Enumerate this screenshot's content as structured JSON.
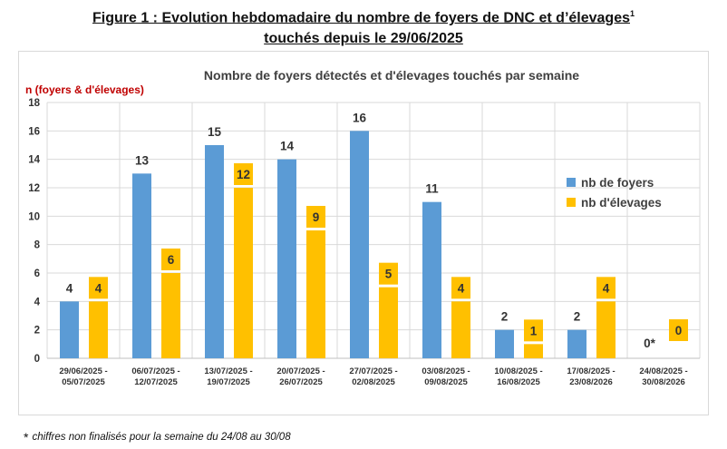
{
  "figure": {
    "title_line1": "Figure 1 : Evolution hebdomadaire du nombre de foyers de DNC et d’élevages",
    "title_sup": "1",
    "title_line2": "touchés depuis le 29/06/2025"
  },
  "footnote": {
    "star": "*",
    "text": "chiffres non finalisés pour la semaine du 24/08 au 30/08"
  },
  "colors": {
    "foyers": "#5b9bd5",
    "elevages": "#ffc000",
    "grid": "#d9d9d9",
    "ylabel": "#c00000"
  },
  "chart_data": {
    "type": "bar",
    "title": "Nombre de foyers détectés et d'élevages touchés par semaine",
    "ylabel": "n (foyers & d'élevages)",
    "xlabel": "",
    "ylim": [
      0,
      18
    ],
    "yticks": [
      0,
      2,
      4,
      6,
      8,
      10,
      12,
      14,
      16,
      18
    ],
    "grid": true,
    "legend_position": "right",
    "categories": [
      [
        "29/06/2025 -",
        "05/07/2025"
      ],
      [
        "06/07/2025 -",
        "12/07/2025"
      ],
      [
        "13/07/2025 -",
        "19/07/2025"
      ],
      [
        "20/07/2025 -",
        "26/07/2025"
      ],
      [
        "27/07/2025 -",
        "02/08/2025"
      ],
      [
        "03/08/2025 -",
        "09/08/2025"
      ],
      [
        "10/08/2025 -",
        "16/08/2025"
      ],
      [
        "17/08/2025 -",
        "23/08/2026"
      ],
      [
        "24/08/2025 -",
        "30/08/2026"
      ]
    ],
    "series": [
      {
        "name": "nb de foyers",
        "color": "#5b9bd5",
        "values": [
          4,
          13,
          15,
          14,
          16,
          11,
          2,
          2,
          0
        ],
        "labels": [
          "4",
          "13",
          "15",
          "14",
          "16",
          "11",
          "2",
          "2",
          "0*"
        ]
      },
      {
        "name": "nb  d'élevages",
        "color": "#ffc000",
        "values": [
          4,
          6,
          12,
          9,
          5,
          4,
          1,
          4,
          0
        ],
        "labels": [
          "4",
          "6",
          "12",
          "9",
          "5",
          "4",
          "1",
          "4",
          "0"
        ]
      }
    ]
  }
}
